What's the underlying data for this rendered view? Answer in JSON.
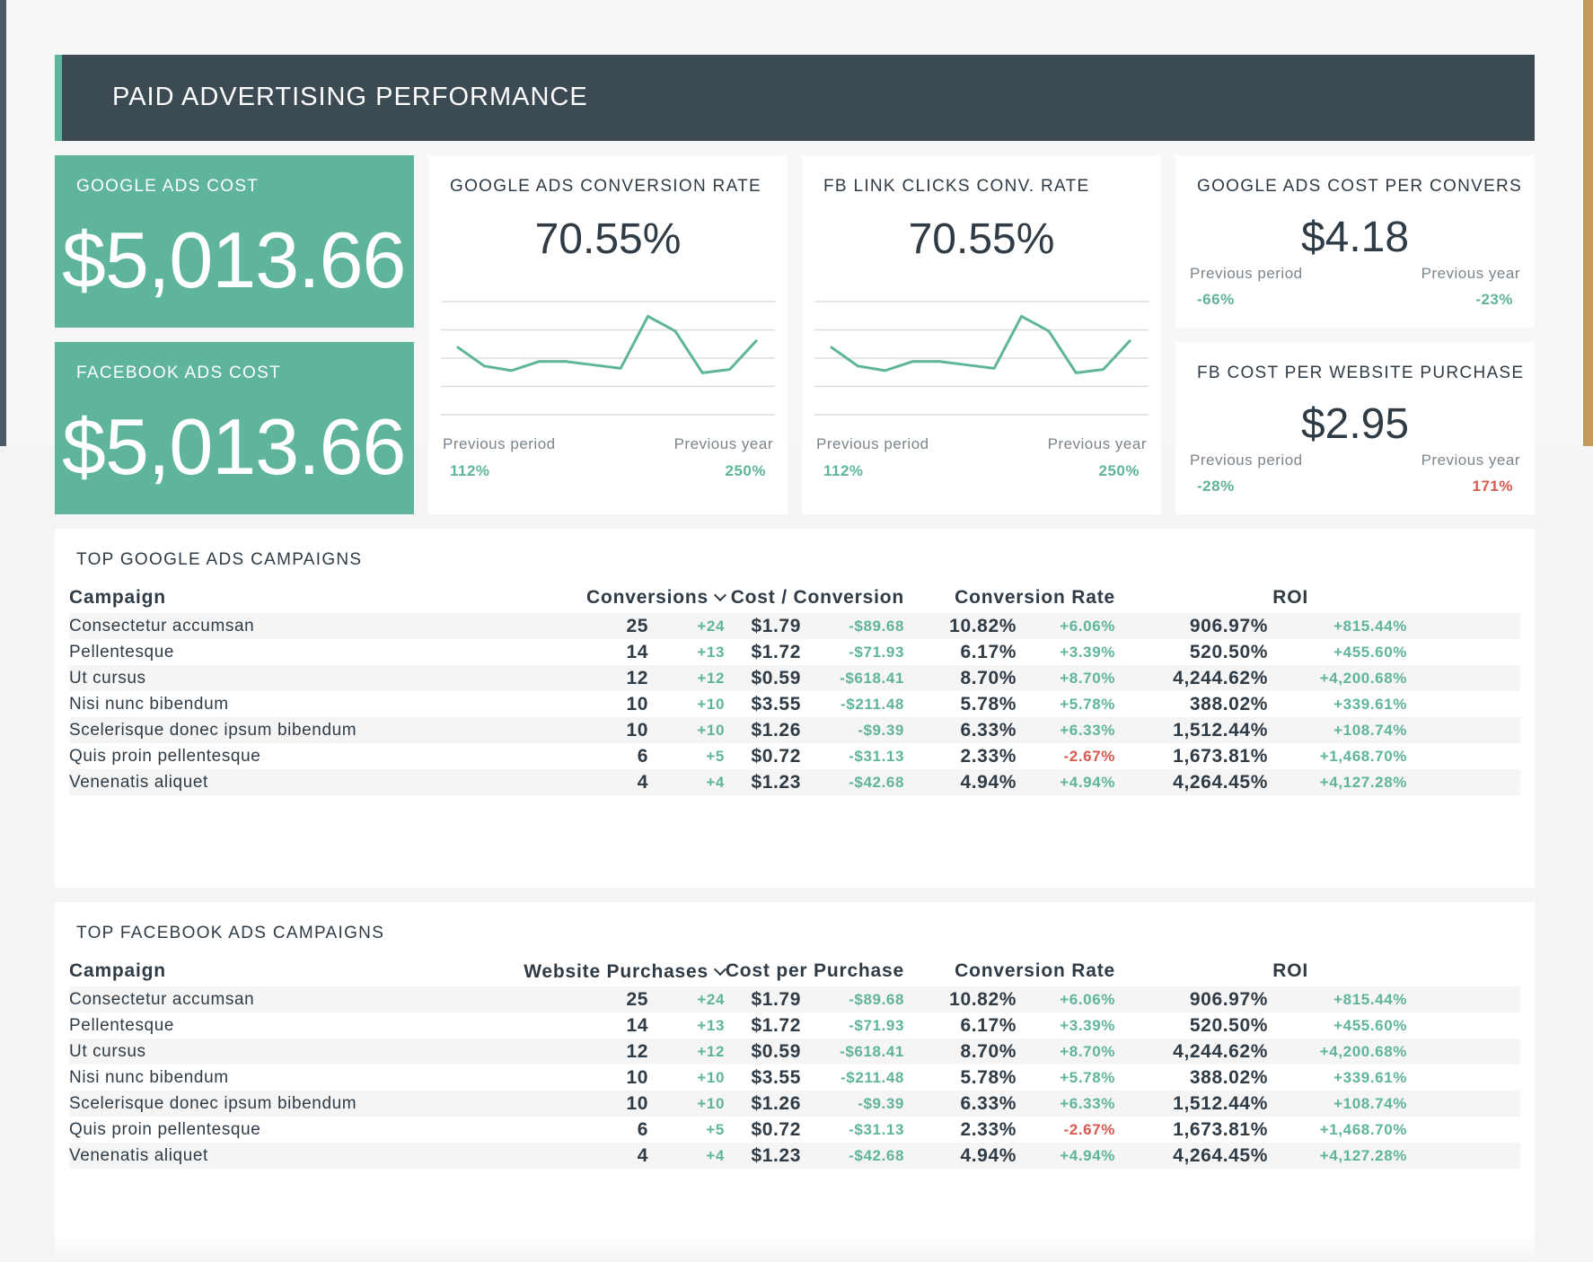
{
  "header": {
    "title": "PAID ADVERTISING PERFORMANCE"
  },
  "colors": {
    "accent": "#5fb49c",
    "header_bg": "#3c4a53",
    "negative": "#d65a4e"
  },
  "kpis": {
    "google_ads_cost": {
      "title": "GOOGLE ADS COST",
      "value": "$5,013.66"
    },
    "facebook_ads_cost": {
      "title": "FACEBOOK ADS COST",
      "value": "$5,013.66"
    },
    "google_conv_rate": {
      "title": "GOOGLE ADS CONVERSION RATE",
      "value": "70.55%",
      "prev_period_label": "Previous period",
      "prev_period_value": "112%",
      "prev_year_label": "Previous year",
      "prev_year_value": "250%"
    },
    "fb_link_clicks": {
      "title": "FB LINK CLICKS CONV. RATE",
      "value": "70.55%",
      "prev_period_label": "Previous period",
      "prev_period_value": "112%",
      "prev_year_label": "Previous year",
      "prev_year_value": "250%"
    },
    "google_cost_per_conv": {
      "title": "GOOGLE ADS COST PER CONVERS",
      "value": "$4.18",
      "prev_period_label": "Previous period",
      "prev_period_value": "-66%",
      "prev_year_label": "Previous year",
      "prev_year_value": "-23%"
    },
    "fb_cost_per_purchase": {
      "title": "FB COST PER WEBSITE PURCHASE",
      "value": "$2.95",
      "prev_period_label": "Previous period",
      "prev_period_value": "-28%",
      "prev_year_label": "Previous year",
      "prev_year_value": "171%"
    }
  },
  "chart_data": [
    {
      "type": "line",
      "series": [
        {
          "values": [
            60,
            43,
            39,
            47,
            47,
            44,
            41,
            87,
            74,
            37,
            40,
            66
          ]
        }
      ],
      "ylim": [
        0,
        100
      ],
      "grid": true
    },
    {
      "type": "line",
      "series": [
        {
          "values": [
            60,
            43,
            39,
            47,
            47,
            44,
            41,
            87,
            74,
            37,
            40,
            66
          ]
        }
      ],
      "ylim": [
        0,
        100
      ],
      "grid": true
    }
  ],
  "google_table": {
    "title": "TOP GOOGLE ADS CAMPAIGNS",
    "headers": {
      "campaign": "Campaign",
      "col1": "Conversions",
      "col2": "Cost / Conversion",
      "col3": "Conversion Rate",
      "col4": "ROI"
    },
    "rows": [
      [
        "Consectetur accumsan",
        "25",
        "+24",
        "$1.79",
        "-$89.68",
        "10.82%",
        "+6.06%",
        "906.97%",
        "+815.44%"
      ],
      [
        "Pellentesque",
        "14",
        "+13",
        "$1.72",
        "-$71.93",
        "6.17%",
        "+3.39%",
        "520.50%",
        "+455.60%"
      ],
      [
        "Ut cursus",
        "12",
        "+12",
        "$0.59",
        "-$618.41",
        "8.70%",
        "+8.70%",
        "4,244.62%",
        "+4,200.68%"
      ],
      [
        "Nisi nunc bibendum",
        "10",
        "+10",
        "$3.55",
        "-$211.48",
        "5.78%",
        "+5.78%",
        "388.02%",
        "+339.61%"
      ],
      [
        "Scelerisque donec ipsum bibendum",
        "10",
        "+10",
        "$1.26",
        "-$9.39",
        "6.33%",
        "+6.33%",
        "1,512.44%",
        "+108.74%"
      ],
      [
        "Quis proin pellentesque",
        "6",
        "+5",
        "$0.72",
        "-$31.13",
        "2.33%",
        "-2.67%",
        "1,673.81%",
        "+1,468.70%"
      ],
      [
        "Venenatis aliquet",
        "4",
        "+4",
        "$1.23",
        "-$42.68",
        "4.94%",
        "+4.94%",
        "4,264.45%",
        "+4,127.28%"
      ]
    ]
  },
  "facebook_table": {
    "title": "TOP FACEBOOK ADS CAMPAIGNS",
    "headers": {
      "campaign": "Campaign",
      "col1": "Website Purchases",
      "col2": "Cost per Purchase",
      "col3": "Conversion Rate",
      "col4": "ROI"
    },
    "rows": [
      [
        "Consectetur accumsan",
        "25",
        "+24",
        "$1.79",
        "-$89.68",
        "10.82%",
        "+6.06%",
        "906.97%",
        "+815.44%"
      ],
      [
        "Pellentesque",
        "14",
        "+13",
        "$1.72",
        "-$71.93",
        "6.17%",
        "+3.39%",
        "520.50%",
        "+455.60%"
      ],
      [
        "Ut cursus",
        "12",
        "+12",
        "$0.59",
        "-$618.41",
        "8.70%",
        "+8.70%",
        "4,244.62%",
        "+4,200.68%"
      ],
      [
        "Nisi nunc bibendum",
        "10",
        "+10",
        "$3.55",
        "-$211.48",
        "5.78%",
        "+5.78%",
        "388.02%",
        "+339.61%"
      ],
      [
        "Scelerisque donec ipsum bibendum",
        "10",
        "+10",
        "$1.26",
        "-$9.39",
        "6.33%",
        "+6.33%",
        "1,512.44%",
        "+108.74%"
      ],
      [
        "Quis proin pellentesque",
        "6",
        "+5",
        "$0.72",
        "-$31.13",
        "2.33%",
        "-2.67%",
        "1,673.81%",
        "+1,468.70%"
      ],
      [
        "Venenatis aliquet",
        "4",
        "+4",
        "$1.23",
        "-$42.68",
        "4.94%",
        "+4.94%",
        "4,264.45%",
        "+4,127.28%"
      ]
    ]
  }
}
